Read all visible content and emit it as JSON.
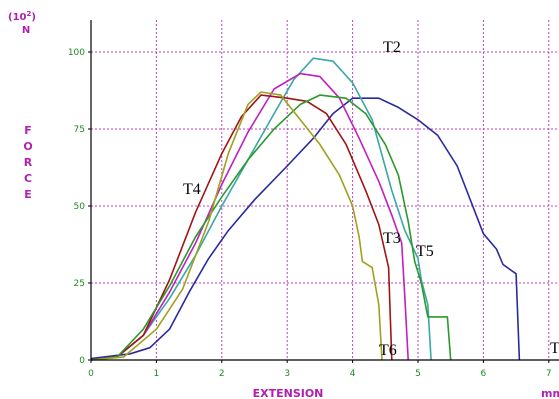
{
  "chart_data": {
    "type": "line",
    "title": "",
    "y_unit_prefix": "(10",
    "y_unit_exp": "2",
    "y_unit_suffix": ")",
    "y_unit_line2": "N",
    "ylabel_letters": [
      "F",
      "O",
      "R",
      "C",
      "E"
    ],
    "xlabel": "EXTENSION",
    "xunit": "mm",
    "xlim": [
      0,
      7.2
    ],
    "ylim": [
      0,
      110
    ],
    "xticks": [
      0,
      1,
      2,
      3,
      4,
      5,
      6,
      7
    ],
    "yticks": [
      0,
      25,
      50,
      75,
      100
    ],
    "grid": true,
    "colors": {
      "axis": "#000000",
      "grid": "#c040c0",
      "ticks": "#1f8a1f",
      "labels": "#b020b0"
    },
    "series": [
      {
        "color": "#2a2aa0",
        "points": [
          [
            0,
            0.5
          ],
          [
            0.6,
            2
          ],
          [
            0.9,
            4
          ],
          [
            1.2,
            10
          ],
          [
            1.5,
            22
          ],
          [
            1.8,
            33
          ],
          [
            2.1,
            42
          ],
          [
            2.5,
            52
          ],
          [
            3.0,
            63
          ],
          [
            3.4,
            72
          ],
          [
            3.7,
            80
          ],
          [
            4.0,
            85
          ],
          [
            4.4,
            85
          ],
          [
            4.7,
            82
          ],
          [
            5.0,
            78
          ],
          [
            5.3,
            73
          ],
          [
            5.6,
            63
          ],
          [
            5.8,
            52
          ],
          [
            6.0,
            41
          ],
          [
            6.2,
            36
          ],
          [
            6.3,
            31
          ],
          [
            6.5,
            28
          ],
          [
            6.55,
            0
          ]
        ]
      },
      {
        "color": "#3aa8a8",
        "points": [
          [
            0,
            0
          ],
          [
            0.4,
            1
          ],
          [
            0.8,
            8
          ],
          [
            1.2,
            20
          ],
          [
            1.6,
            34
          ],
          [
            2.0,
            50
          ],
          [
            2.4,
            65
          ],
          [
            2.8,
            80
          ],
          [
            3.1,
            91
          ],
          [
            3.4,
            98
          ],
          [
            3.7,
            97
          ],
          [
            4.0,
            90
          ],
          [
            4.3,
            78
          ],
          [
            4.6,
            55
          ],
          [
            4.8,
            42
          ],
          [
            5.0,
            33
          ],
          [
            5.05,
            26
          ],
          [
            5.15,
            18
          ],
          [
            5.2,
            0
          ]
        ]
      },
      {
        "color": "#c020c0",
        "points": [
          [
            0,
            0
          ],
          [
            0.4,
            1
          ],
          [
            0.8,
            8
          ],
          [
            1.2,
            22
          ],
          [
            1.6,
            38
          ],
          [
            2.0,
            57
          ],
          [
            2.4,
            74
          ],
          [
            2.8,
            88
          ],
          [
            3.2,
            93
          ],
          [
            3.5,
            92
          ],
          [
            3.8,
            85
          ],
          [
            4.1,
            72
          ],
          [
            4.4,
            58
          ],
          [
            4.6,
            47
          ],
          [
            4.75,
            38
          ],
          [
            4.8,
            20
          ],
          [
            4.85,
            0
          ]
        ]
      },
      {
        "color": "#a01515",
        "points": [
          [
            0,
            0
          ],
          [
            0.4,
            1
          ],
          [
            0.8,
            8
          ],
          [
            1.2,
            26
          ],
          [
            1.6,
            48
          ],
          [
            2.0,
            67
          ],
          [
            2.3,
            79
          ],
          [
            2.6,
            86
          ],
          [
            3.0,
            85
          ],
          [
            3.3,
            84
          ],
          [
            3.6,
            80
          ],
          [
            3.9,
            70
          ],
          [
            4.2,
            55
          ],
          [
            4.4,
            44
          ],
          [
            4.55,
            30
          ],
          [
            4.6,
            0
          ]
        ]
      },
      {
        "color": "#2a9a2a",
        "points": [
          [
            0,
            0
          ],
          [
            0.4,
            1
          ],
          [
            0.8,
            10
          ],
          [
            1.2,
            24
          ],
          [
            1.6,
            40
          ],
          [
            2.0,
            53
          ],
          [
            2.4,
            65
          ],
          [
            2.8,
            75
          ],
          [
            3.2,
            83
          ],
          [
            3.5,
            86
          ],
          [
            3.9,
            85
          ],
          [
            4.2,
            80
          ],
          [
            4.5,
            70
          ],
          [
            4.7,
            60
          ],
          [
            4.85,
            45
          ],
          [
            4.95,
            32
          ],
          [
            5.05,
            25
          ],
          [
            5.15,
            14
          ],
          [
            5.3,
            14
          ],
          [
            5.45,
            14
          ],
          [
            5.5,
            0
          ]
        ]
      },
      {
        "color": "#a0a020",
        "points": [
          [
            0,
            0
          ],
          [
            0.5,
            1
          ],
          [
            1.0,
            10
          ],
          [
            1.4,
            23
          ],
          [
            1.8,
            45
          ],
          [
            2.1,
            67
          ],
          [
            2.4,
            83
          ],
          [
            2.6,
            87
          ],
          [
            2.9,
            86
          ],
          [
            3.2,
            78
          ],
          [
            3.5,
            70
          ],
          [
            3.8,
            60
          ],
          [
            4.0,
            50
          ],
          [
            4.1,
            40
          ],
          [
            4.15,
            32
          ],
          [
            4.3,
            30
          ],
          [
            4.4,
            18
          ],
          [
            4.45,
            0
          ]
        ]
      }
    ],
    "annotations": [
      "T2",
      "T4",
      "T3",
      "T5",
      "T6",
      "T"
    ]
  }
}
